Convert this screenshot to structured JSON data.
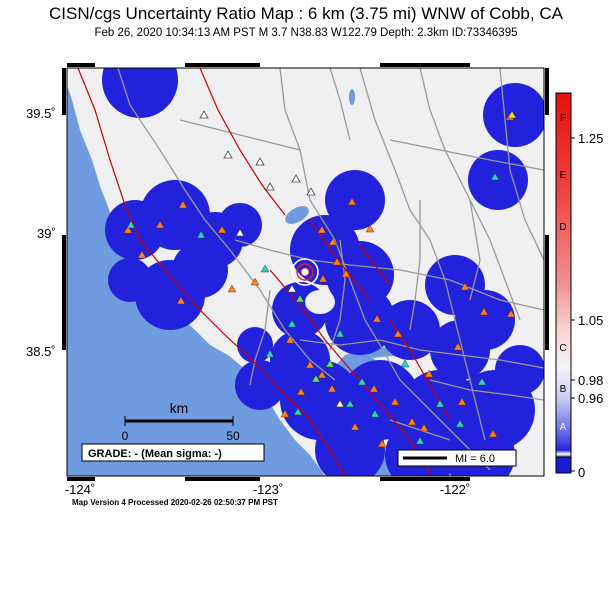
{
  "header": {
    "title": "CISN/cgs Uncertainty Ratio Map : 6 km (3.75 mi) WNW of Cobb, CA",
    "subtitle": "Feb 26, 2020 10:34:13 AM PST   M 3.7    N38.83 W122.79    Depth: 2.3km    ID:73346395"
  },
  "map": {
    "lon_labels": [
      "-124˚",
      "-123˚",
      "-122˚"
    ],
    "lat_labels": [
      "39.5˚",
      "39˚",
      "38.5˚"
    ],
    "scale_unit": "km",
    "scale_ticks": [
      "0",
      "50"
    ],
    "grade_text": "GRADE: - (Mean sigma: -)",
    "mi_legend": "MI = 6.0",
    "colors": {
      "ocean": "#6f9be0",
      "land": "#f0f0f2",
      "blob": "#2222dd",
      "fault": "#cc0000",
      "road": "#999999"
    }
  },
  "colorbar": {
    "letters": [
      "F",
      "E",
      "D",
      "C",
      "B",
      "A"
    ],
    "values": [
      "1.25",
      "1.05",
      "0.98",
      "0.96",
      "0"
    ]
  },
  "footer": {
    "text": "Map Version 4 Processed 2020-02-26 02:50:37 PM PST"
  }
}
